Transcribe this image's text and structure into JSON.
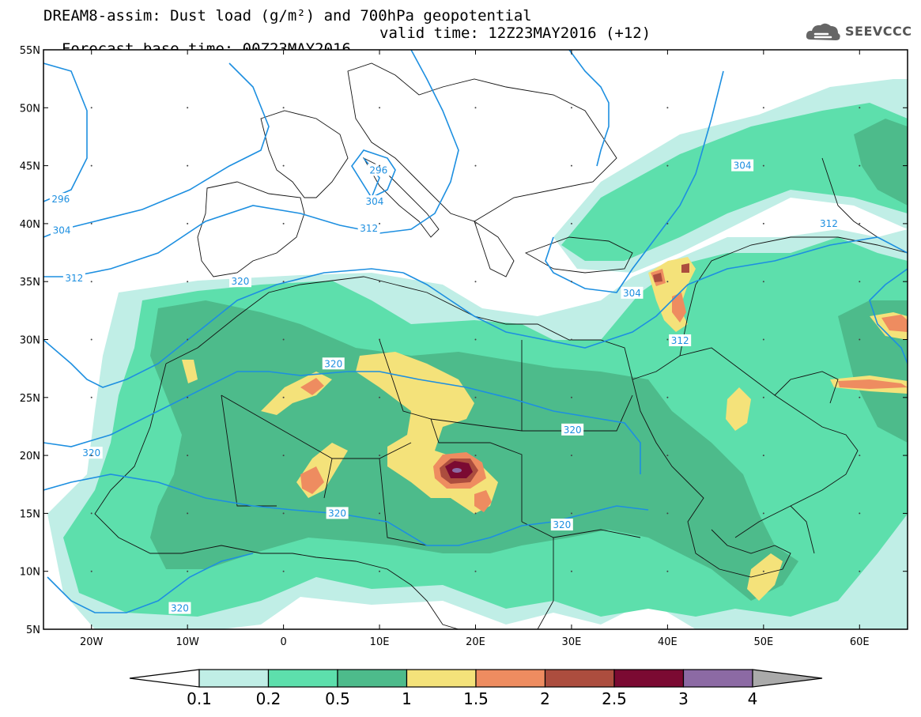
{
  "header": {
    "line1": "DREAM8-assim: Dust load (g/m²) and 700hPa geopotential",
    "line2_left": "Forecast base time: 00Z23MAY2016",
    "line2_right": "valid time: 12Z23MAY2016 (+12)"
  },
  "logo": {
    "text": "SEEVCCC",
    "icon": "cloud-logo-icon"
  },
  "map": {
    "lon_range": [
      -25,
      65
    ],
    "lat_range": [
      5,
      55
    ],
    "lat_labels": [
      "55N",
      "50N",
      "45N",
      "40N",
      "35N",
      "30N",
      "25N",
      "20N",
      "15N",
      "10N",
      "5N"
    ],
    "lon_labels": [
      "20W",
      "10W",
      "0",
      "10E",
      "20E",
      "30E",
      "40E",
      "50E",
      "60E"
    ],
    "contour_labels": [
      {
        "text": "296",
        "lon": -23.2,
        "lat": 42.1
      },
      {
        "text": "304",
        "lon": -23.1,
        "lat": 39.4
      },
      {
        "text": "312",
        "lon": -21.8,
        "lat": 35.3
      },
      {
        "text": "296",
        "lon": 9.9,
        "lat": 44.6
      },
      {
        "text": "304",
        "lon": 9.5,
        "lat": 41.9
      },
      {
        "text": "312",
        "lon": 8.9,
        "lat": 39.6
      },
      {
        "text": "304",
        "lon": 47.8,
        "lat": 45.0
      },
      {
        "text": "312",
        "lon": 56.8,
        "lat": 40.0
      },
      {
        "text": "320",
        "lon": -4.5,
        "lat": 35.0
      },
      {
        "text": "304",
        "lon": 36.3,
        "lat": 34.0
      },
      {
        "text": "312",
        "lon": 41.3,
        "lat": 29.9
      },
      {
        "text": "320",
        "lon": 5.2,
        "lat": 27.9
      },
      {
        "text": "320",
        "lon": 30.1,
        "lat": 22.2
      },
      {
        "text": "320",
        "lon": -20.0,
        "lat": 20.2
      },
      {
        "text": "320",
        "lon": 5.6,
        "lat": 15.0
      },
      {
        "text": "320",
        "lon": 29.0,
        "lat": 14.0
      },
      {
        "text": "320",
        "lon": -10.8,
        "lat": 6.8
      }
    ]
  },
  "colorbar": {
    "labels": [
      "0.1",
      "0.2",
      "0.5",
      "1",
      "1.5",
      "2",
      "2.5",
      "3",
      "4"
    ],
    "colors": [
      "#c0eee6",
      "#5ddfac",
      "#4dbb8b",
      "#f4e27a",
      "#ee8c60",
      "#ac4d3e",
      "#7b0a32",
      "#8c6aa4",
      "#aaaaaa"
    ],
    "under_color": "#ffffff",
    "over_color": "#aaaaaa"
  }
}
